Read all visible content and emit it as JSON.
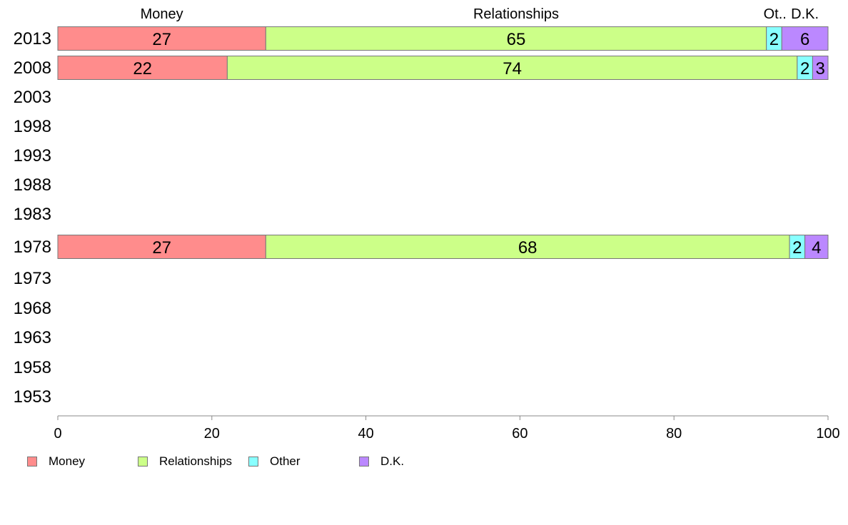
{
  "chart_data": {
    "type": "bar",
    "orientation": "horizontal",
    "stacked": true,
    "years": [
      "2013",
      "2008",
      "2003",
      "1998",
      "1993",
      "1988",
      "1983",
      "1978",
      "1973",
      "1968",
      "1963",
      "1958",
      "1953"
    ],
    "series": [
      {
        "name": "Money",
        "color": "#ff8c8c",
        "header": "Money",
        "values": {
          "2013": 27,
          "2008": 22,
          "1978": 27
        }
      },
      {
        "name": "Relationships",
        "color": "#ccff88",
        "header": "Relationships",
        "values": {
          "2013": 65,
          "2008": 74,
          "1978": 68
        }
      },
      {
        "name": "Other",
        "color": "#88ffff",
        "header": "Ot..",
        "values": {
          "2013": 2,
          "2008": 2,
          "1978": 2
        }
      },
      {
        "name": "D.K.",
        "color": "#bb88ff",
        "header": "D.K.",
        "values": {
          "2013": 6,
          "2008": 3,
          "1978": 4
        }
      }
    ],
    "xlim": [
      0,
      100
    ],
    "xticks": [
      "0",
      "20",
      "40",
      "60",
      "80",
      "100"
    ],
    "grid": false,
    "legend_position": "bottom-left"
  },
  "legend": [
    {
      "label": "Money",
      "color": "#ff8c8c"
    },
    {
      "label": "Relationships",
      "color": "#ccff88"
    },
    {
      "label": "Other",
      "color": "#88ffff"
    },
    {
      "label": "D.K.",
      "color": "#bb88ff"
    }
  ]
}
